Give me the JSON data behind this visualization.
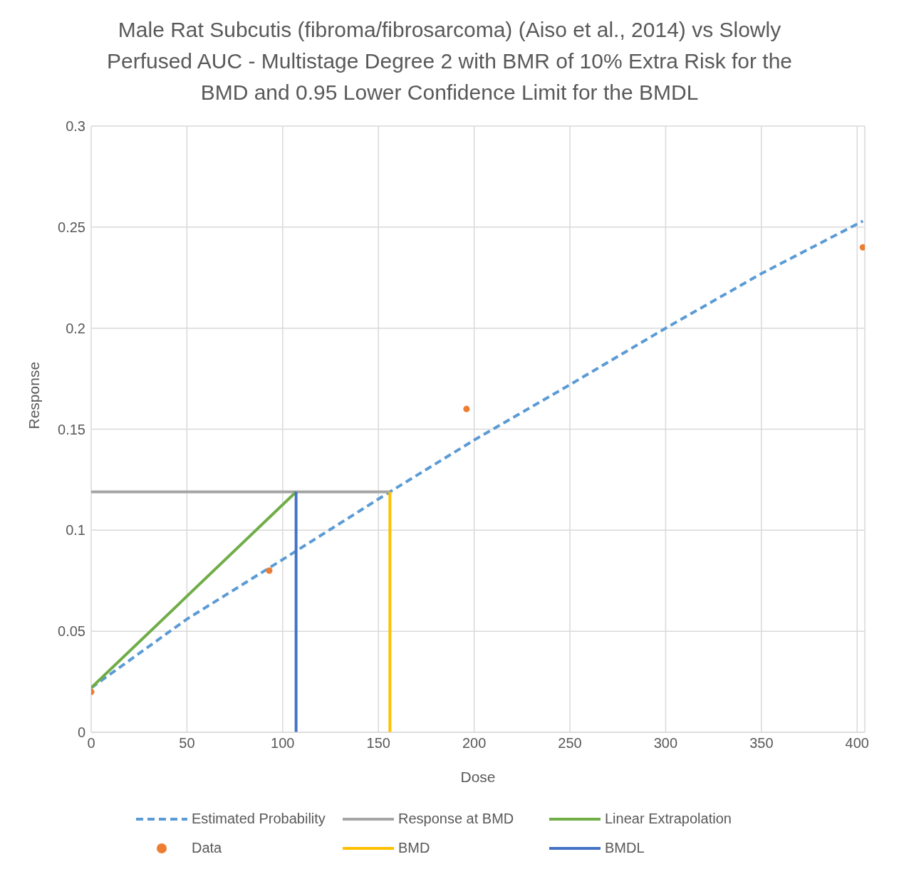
{
  "chart_data": {
    "type": "line",
    "title": "Male Rat Subcutis (fibroma/fibrosarcoma) (Aiso et al., 2014) vs Slowly Perfused AUC -  Multistage Degree 2 with BMR of 10% Extra Risk for the BMD and 0.95 Lower Confidence Limit for the BMDL",
    "xlabel": "Dose",
    "ylabel": "Response",
    "xlim": [
      0,
      404
    ],
    "xticks": [
      0,
      50,
      100,
      150,
      200,
      250,
      300,
      350,
      400
    ],
    "ylim": [
      0,
      0.3
    ],
    "yticks": [
      0,
      0.05,
      0.1,
      0.15,
      0.2,
      0.25,
      0.3
    ],
    "grid": true,
    "legend": "bottom",
    "series": [
      {
        "name": "Estimated Probability",
        "line_style": "dashed",
        "marker": "none",
        "color": "#5b9bd5",
        "x": [
          0,
          50,
          100,
          156,
          200,
          250,
          300,
          350,
          403
        ],
        "values": [
          0.022,
          0.056,
          0.0855,
          0.119,
          0.1446,
          0.172,
          0.2,
          0.227,
          0.253
        ]
      },
      {
        "name": "Response at BMD",
        "line_style": "solid",
        "marker": "none",
        "color": "#a5a5a5",
        "x": [
          0,
          156
        ],
        "values": [
          0.119,
          0.119
        ]
      },
      {
        "name": "Linear Extrapolation",
        "line_style": "solid",
        "marker": "none",
        "color": "#70ad47",
        "x": [
          0,
          107
        ],
        "values": [
          0.022,
          0.119
        ]
      },
      {
        "name": "Data",
        "type": "scatter",
        "marker": "circle",
        "color": "#ed7d31",
        "x": [
          0,
          93,
          196,
          403
        ],
        "values": [
          0.02,
          0.08,
          0.16,
          0.24
        ]
      },
      {
        "name": "BMD",
        "line_style": "solid",
        "marker": "none",
        "color": "#ffc000",
        "x": [
          156,
          156
        ],
        "values": [
          0,
          0.119
        ]
      },
      {
        "name": "BMDL",
        "line_style": "solid",
        "marker": "none",
        "color": "#4472c4",
        "x": [
          107,
          107
        ],
        "values": [
          0,
          0.119
        ]
      }
    ]
  }
}
